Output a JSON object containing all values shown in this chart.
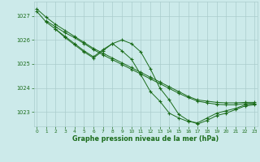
{
  "bg_color": "#cceaea",
  "grid_color": "#aacccc",
  "line_color": "#1a6b1a",
  "xlabel": "Graphe pression niveau de la mer (hPa)",
  "ylim": [
    1022.4,
    1027.6
  ],
  "xlim": [
    -0.3,
    23.3
  ],
  "yticks": [
    1023,
    1024,
    1025,
    1026,
    1027
  ],
  "xticks": [
    0,
    1,
    2,
    3,
    4,
    5,
    6,
    7,
    8,
    9,
    10,
    11,
    12,
    13,
    14,
    15,
    16,
    17,
    18,
    19,
    20,
    21,
    22,
    23
  ],
  "lines": [
    {
      "x": [
        0,
        1,
        2,
        3,
        4,
        5,
        6,
        7,
        8,
        9,
        10,
        11,
        12,
        13,
        14,
        15,
        16,
        17,
        18,
        19,
        20,
        21,
        22,
        23
      ],
      "y": [
        1027.3,
        1026.95,
        1026.65,
        1026.4,
        1026.15,
        1025.9,
        1025.65,
        1025.45,
        1025.25,
        1025.05,
        1024.85,
        1024.65,
        1024.45,
        1024.25,
        1024.05,
        1023.85,
        1023.65,
        1023.5,
        1023.45,
        1023.4,
        1023.38,
        1023.38,
        1023.4,
        1023.4
      ]
    },
    {
      "x": [
        1,
        2,
        3,
        4,
        5,
        6,
        7,
        8,
        9,
        10,
        11,
        12,
        13,
        14,
        15,
        16,
        17,
        18,
        19,
        20,
        21,
        22,
        23
      ],
      "y": [
        1026.8,
        1026.55,
        1026.3,
        1026.1,
        1025.85,
        1025.6,
        1025.38,
        1025.18,
        1024.98,
        1024.78,
        1024.58,
        1024.38,
        1024.18,
        1023.98,
        1023.78,
        1023.6,
        1023.45,
        1023.38,
        1023.32,
        1023.3,
        1023.3,
        1023.35,
        1023.35
      ]
    },
    {
      "x": [
        0,
        1,
        2,
        3,
        4,
        5,
        6,
        7,
        8,
        9,
        10,
        11,
        12,
        13,
        14,
        15,
        16,
        17,
        18,
        19,
        20,
        21,
        22,
        23
      ],
      "y": [
        1027.2,
        1026.75,
        1026.45,
        1026.15,
        1025.85,
        1025.55,
        1025.3,
        1025.6,
        1025.85,
        1025.55,
        1025.2,
        1024.55,
        1023.85,
        1023.45,
        1022.95,
        1022.75,
        1022.6,
        1022.55,
        1022.75,
        1022.95,
        1023.05,
        1023.15,
        1023.3,
        1023.35
      ]
    },
    {
      "x": [
        2,
        3,
        4,
        5,
        6,
        7,
        8,
        9,
        10,
        11,
        12,
        13,
        14,
        15,
        16,
        17,
        18,
        19,
        20,
        21,
        22,
        23
      ],
      "y": [
        1026.45,
        1026.1,
        1025.8,
        1025.5,
        1025.25,
        1025.55,
        1025.85,
        1026.0,
        1025.85,
        1025.5,
        1024.8,
        1024.0,
        1023.5,
        1022.9,
        1022.65,
        1022.5,
        1022.65,
        1022.85,
        1022.95,
        1023.1,
        1023.25,
        1023.3
      ]
    }
  ]
}
